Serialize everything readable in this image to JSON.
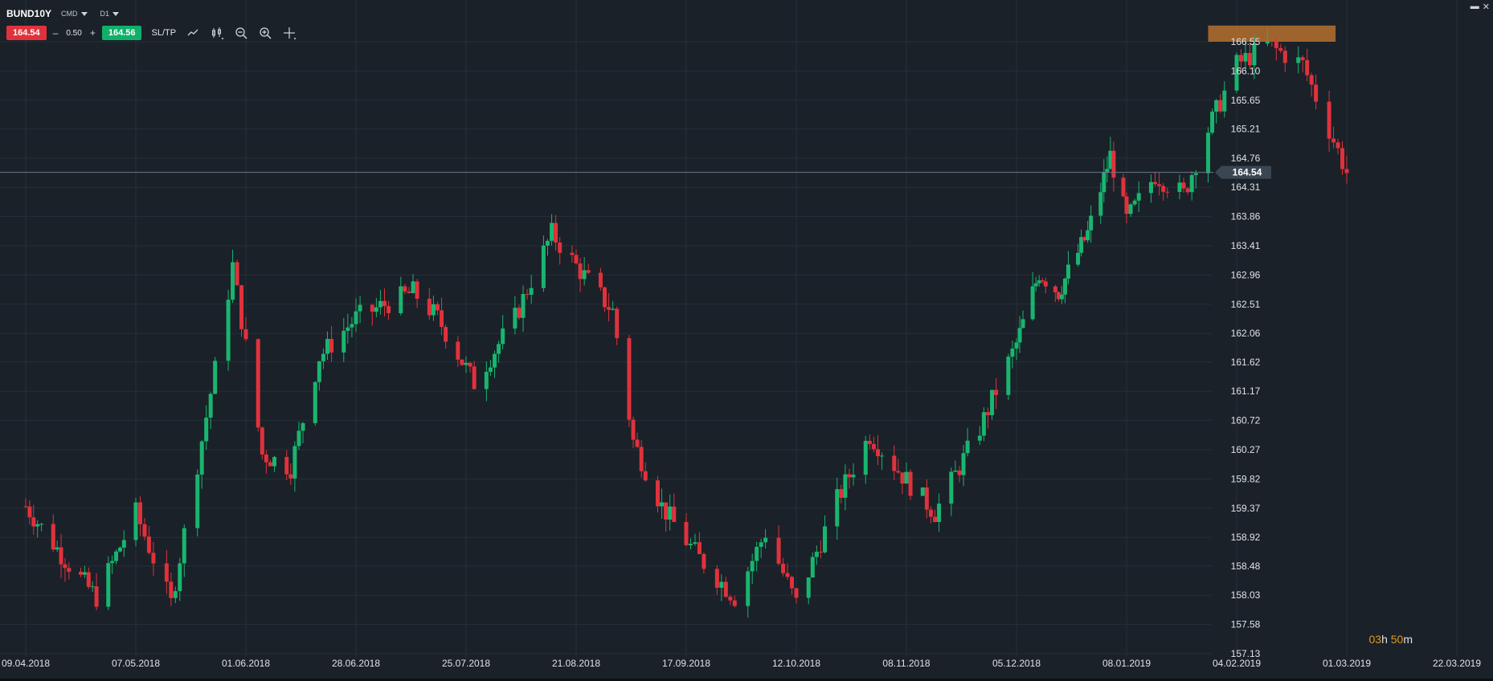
{
  "toolbar": {
    "symbol": "BUND10Y",
    "category": "CMD",
    "timeframe": "D1",
    "sell_price": "164.54",
    "buy_price": "164.56",
    "volume": "0.50",
    "minus": "–",
    "plus": "+",
    "sltp": "SL/TP",
    "tools": [
      "line-chart-icon",
      "candles-icon",
      "zoom-out-icon",
      "zoom-in-icon",
      "crosshair-icon"
    ]
  },
  "window": {
    "minimize": "▬",
    "close": "✕"
  },
  "timer": {
    "hours": "03",
    "h_unit": "h",
    "minutes": "50",
    "m_unit": "m"
  },
  "colors": {
    "background": "#1a2129",
    "grid": "#262f38",
    "bull": "#19b56f",
    "bear": "#e0323c",
    "highlight": "#c1762e",
    "price_line": "#6a7a89",
    "axis_text": "#e0e3e6"
  },
  "chart_data": {
    "type": "candlestick",
    "instrument": "BUND10Y",
    "timeframe": "D1",
    "y_ticks": [
      "166.55",
      "166.10",
      "165.65",
      "165.21",
      "164.76",
      "164.31",
      "163.86",
      "163.41",
      "162.96",
      "162.51",
      "162.06",
      "161.62",
      "161.17",
      "160.72",
      "160.27",
      "159.82",
      "159.37",
      "158.92",
      "158.48",
      "158.03",
      "157.58",
      "157.13"
    ],
    "x_ticks": [
      "09.04.2018",
      "07.05.2018",
      "01.06.2018",
      "28.06.2018",
      "25.07.2018",
      "21.08.2018",
      "17.09.2018",
      "12.10.2018",
      "08.11.2018",
      "05.12.2018",
      "08.01.2019",
      "04.02.2019",
      "01.03.2019",
      "22.03.2019"
    ],
    "ylim": [
      157.13,
      166.55
    ],
    "current_price": "164.54",
    "resistance_zone": [
      166.55,
      166.75
    ],
    "series_anchors": [
      {
        "date": "09.04.2018",
        "close": 159.4
      },
      {
        "date": "20.04.2018",
        "close": 158.5
      },
      {
        "date": "27.04.2018",
        "close": 158.0
      },
      {
        "date": "07.05.2018",
        "close": 159.3
      },
      {
        "date": "15.05.2018",
        "close": 157.9
      },
      {
        "date": "25.05.2018",
        "close": 161.5
      },
      {
        "date": "29.05.2018",
        "close": 163.1
      },
      {
        "date": "05.06.2018",
        "close": 160.2
      },
      {
        "date": "12.06.2018",
        "close": 160.0
      },
      {
        "date": "19.06.2018",
        "close": 161.7
      },
      {
        "date": "28.06.2018",
        "close": 162.3
      },
      {
        "date": "12.07.2018",
        "close": 162.7
      },
      {
        "date": "18.07.2018",
        "close": 162.3
      },
      {
        "date": "27.07.2018",
        "close": 161.3
      },
      {
        "date": "06.08.2018",
        "close": 162.3
      },
      {
        "date": "15.08.2018",
        "close": 163.6
      },
      {
        "date": "21.08.2018",
        "close": 163.1
      },
      {
        "date": "30.08.2018",
        "close": 162.4
      },
      {
        "date": "04.09.2018",
        "close": 160.4
      },
      {
        "date": "11.09.2018",
        "close": 159.4
      },
      {
        "date": "20.09.2018",
        "close": 158.6
      },
      {
        "date": "28.09.2018",
        "close": 158.0
      },
      {
        "date": "05.10.2018",
        "close": 159.0
      },
      {
        "date": "12.10.2018",
        "close": 157.9
      },
      {
        "date": "22.10.2018",
        "close": 159.5
      },
      {
        "date": "30.10.2018",
        "close": 160.5
      },
      {
        "date": "08.11.2018",
        "close": 159.8
      },
      {
        "date": "15.11.2018",
        "close": 159.3
      },
      {
        "date": "26.11.2018",
        "close": 160.6
      },
      {
        "date": "05.12.2018",
        "close": 161.9
      },
      {
        "date": "12.12.2018",
        "close": 163.0
      },
      {
        "date": "18.12.2018",
        "close": 162.7
      },
      {
        "date": "27.12.2018",
        "close": 163.6
      },
      {
        "date": "03.01.2019",
        "close": 164.8
      },
      {
        "date": "08.01.2019",
        "close": 163.8
      },
      {
        "date": "15.01.2019",
        "close": 164.5
      },
      {
        "date": "22.01.2019",
        "close": 164.2
      },
      {
        "date": "28.01.2019",
        "close": 165.2
      },
      {
        "date": "04.02.2019",
        "close": 166.2
      },
      {
        "date": "11.02.2019",
        "close": 166.5
      },
      {
        "date": "19.02.2019",
        "close": 166.2
      },
      {
        "date": "25.02.2019",
        "close": 165.2
      },
      {
        "date": "01.03.2019",
        "close": 164.54
      }
    ]
  }
}
